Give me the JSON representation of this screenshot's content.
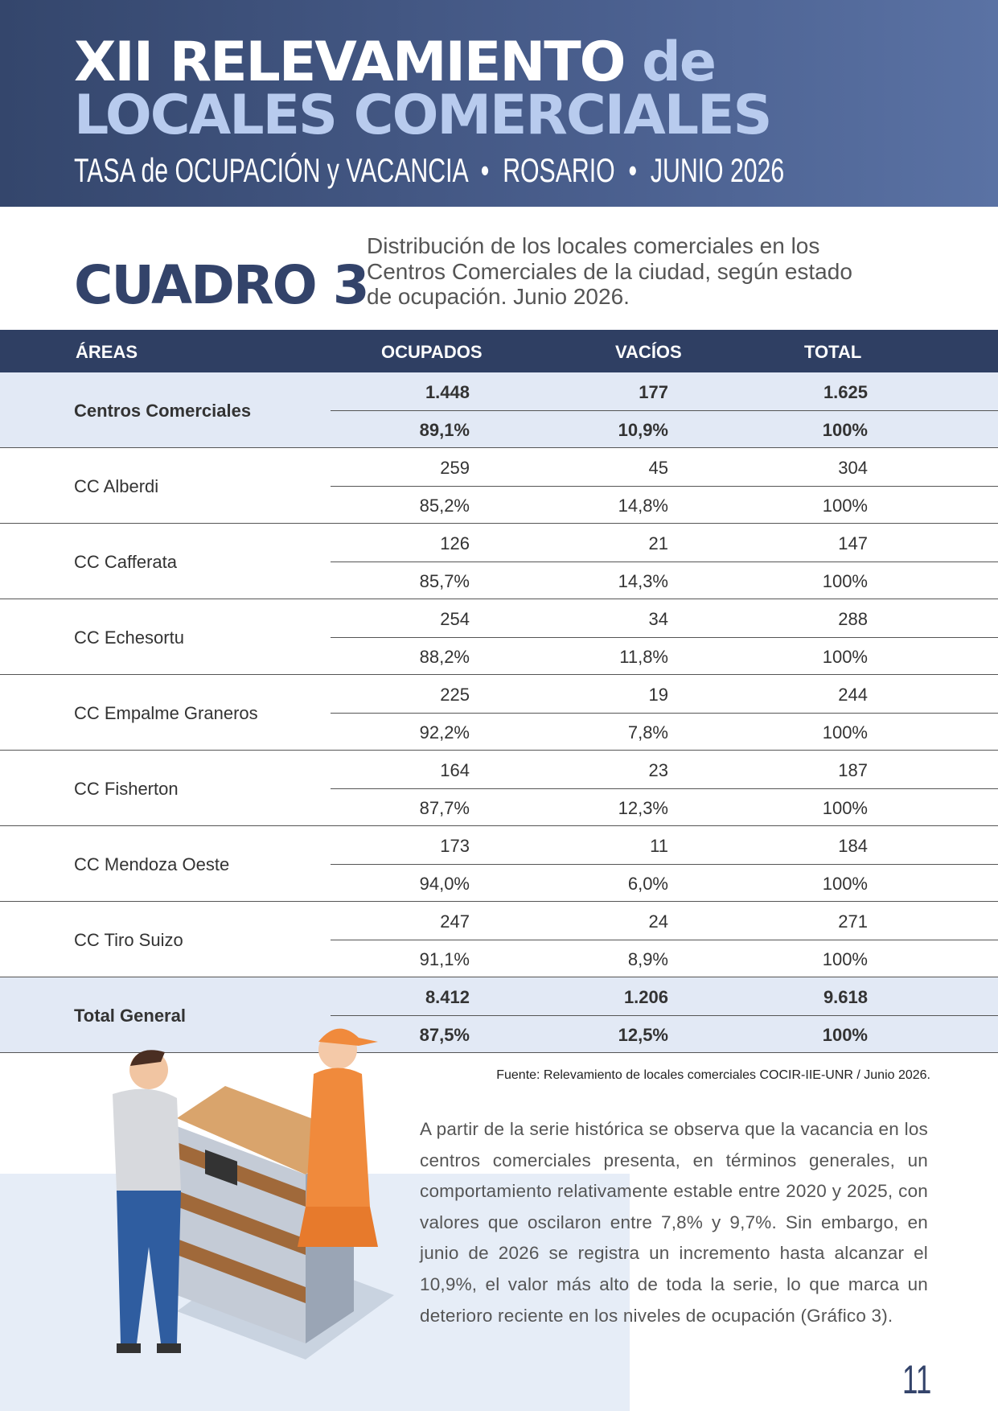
{
  "header": {
    "title_main": "XII RELEVAMIENTO",
    "title_connector": "de",
    "title_line2": "LOCALES COMERCIALES",
    "subtitle": "TASA de OCUPACIÓN y VACANCIA  •  ROSARIO  •  JUNIO 2026"
  },
  "section": {
    "label": "CUADRO 3",
    "description": [
      "Distribución de los locales comerciales en los",
      "Centros Comerciales de la ciudad, según estado",
      "de ocupación. Junio 2026."
    ]
  },
  "table": {
    "columns": [
      "ÁREAS",
      "OCUPADOS",
      "VACÍOS",
      "TOTAL"
    ],
    "rows": [
      {
        "area": "Centros Comerciales",
        "counts": [
          "1.448",
          "177",
          "1.625"
        ],
        "percents": [
          "89,1%",
          "10,9%",
          "100%"
        ]
      },
      {
        "area": "CC Alberdi",
        "counts": [
          "259",
          "45",
          "304"
        ],
        "percents": [
          "85,2%",
          "14,8%",
          "100%"
        ]
      },
      {
        "area": "CC Cafferata",
        "counts": [
          "126",
          "21",
          "147"
        ],
        "percents": [
          "85,7%",
          "14,3%",
          "100%"
        ]
      },
      {
        "area": "CC Echesortu",
        "counts": [
          "254",
          "34",
          "288"
        ],
        "percents": [
          "88,2%",
          "11,8%",
          "100%"
        ]
      },
      {
        "area": "CC Empalme Graneros",
        "counts": [
          "225",
          "19",
          "244"
        ],
        "percents": [
          "92,2%",
          "7,8%",
          "100%"
        ]
      },
      {
        "area": "CC Fisherton",
        "counts": [
          "164",
          "23",
          "187"
        ],
        "percents": [
          "87,7%",
          "12,3%",
          "100%"
        ]
      },
      {
        "area": "CC Mendoza Oeste",
        "counts": [
          "173",
          "11",
          "184"
        ],
        "percents": [
          "94,0%",
          "6,0%",
          "100%"
        ]
      },
      {
        "area": "CC Tiro Suizo",
        "counts": [
          "247",
          "24",
          "271"
        ],
        "percents": [
          "91,1%",
          "8,9%",
          "100%"
        ]
      },
      {
        "area": "Total General",
        "counts": [
          "8.412",
          "1.206",
          "9.618"
        ],
        "percents": [
          "87,5%",
          "12,5%",
          "100%"
        ]
      }
    ],
    "source": "Fuente: Relevamiento de locales comerciales COCIR-IIE-UNR / Junio 2026."
  },
  "body": {
    "paragraph": "A partir de la serie histórica se observa que la vacancia en los centros comerciales presenta, en términos generales, un comportamiento relativamente estable entre 2020 y 2025, con valores que oscilaron entre 7,8% y 9,7%. Sin embargo, en junio de 2026 se registra un incremento hasta alcanzar el 10,9%, el valor más alto de toda la serie, lo que marca un deterioro reciente en los niveles de ocupación (Gráfico 3)."
  },
  "footer": {
    "page_number": "11"
  }
}
